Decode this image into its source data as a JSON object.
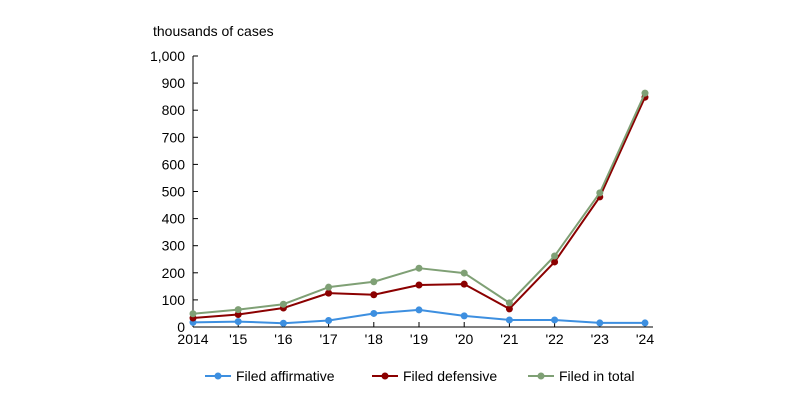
{
  "chart_data": {
    "type": "line",
    "ylabel": "thousands of cases",
    "ylim": [
      0,
      1000
    ],
    "y_ticks": [
      0,
      100,
      200,
      300,
      400,
      500,
      600,
      700,
      800,
      900,
      1000
    ],
    "y_tick_labels": [
      "0",
      "100",
      "200",
      "300",
      "400",
      "500",
      "600",
      "700",
      "800",
      "900",
      "1,000"
    ],
    "categories": [
      "2014",
      "'15",
      "'16",
      "'17",
      "'18",
      "'19",
      "'20",
      "'21",
      "'22",
      "'23",
      "'24"
    ],
    "grid": false,
    "legend_position": "bottom",
    "series": [
      {
        "name": "Filed affirmative",
        "color": "#3D8FE0",
        "values": [
          17,
          20,
          14,
          24,
          50,
          63,
          41,
          26,
          26,
          15,
          15
        ]
      },
      {
        "name": "Filed defensive",
        "color": "#8B0000",
        "values": [
          33,
          46,
          70,
          125,
          119,
          155,
          158,
          67,
          240,
          480,
          848
        ]
      },
      {
        "name": "Filed in total",
        "color": "#7FA075",
        "values": [
          49,
          64,
          84,
          147,
          167,
          217,
          199,
          89,
          262,
          495,
          863
        ]
      }
    ]
  }
}
